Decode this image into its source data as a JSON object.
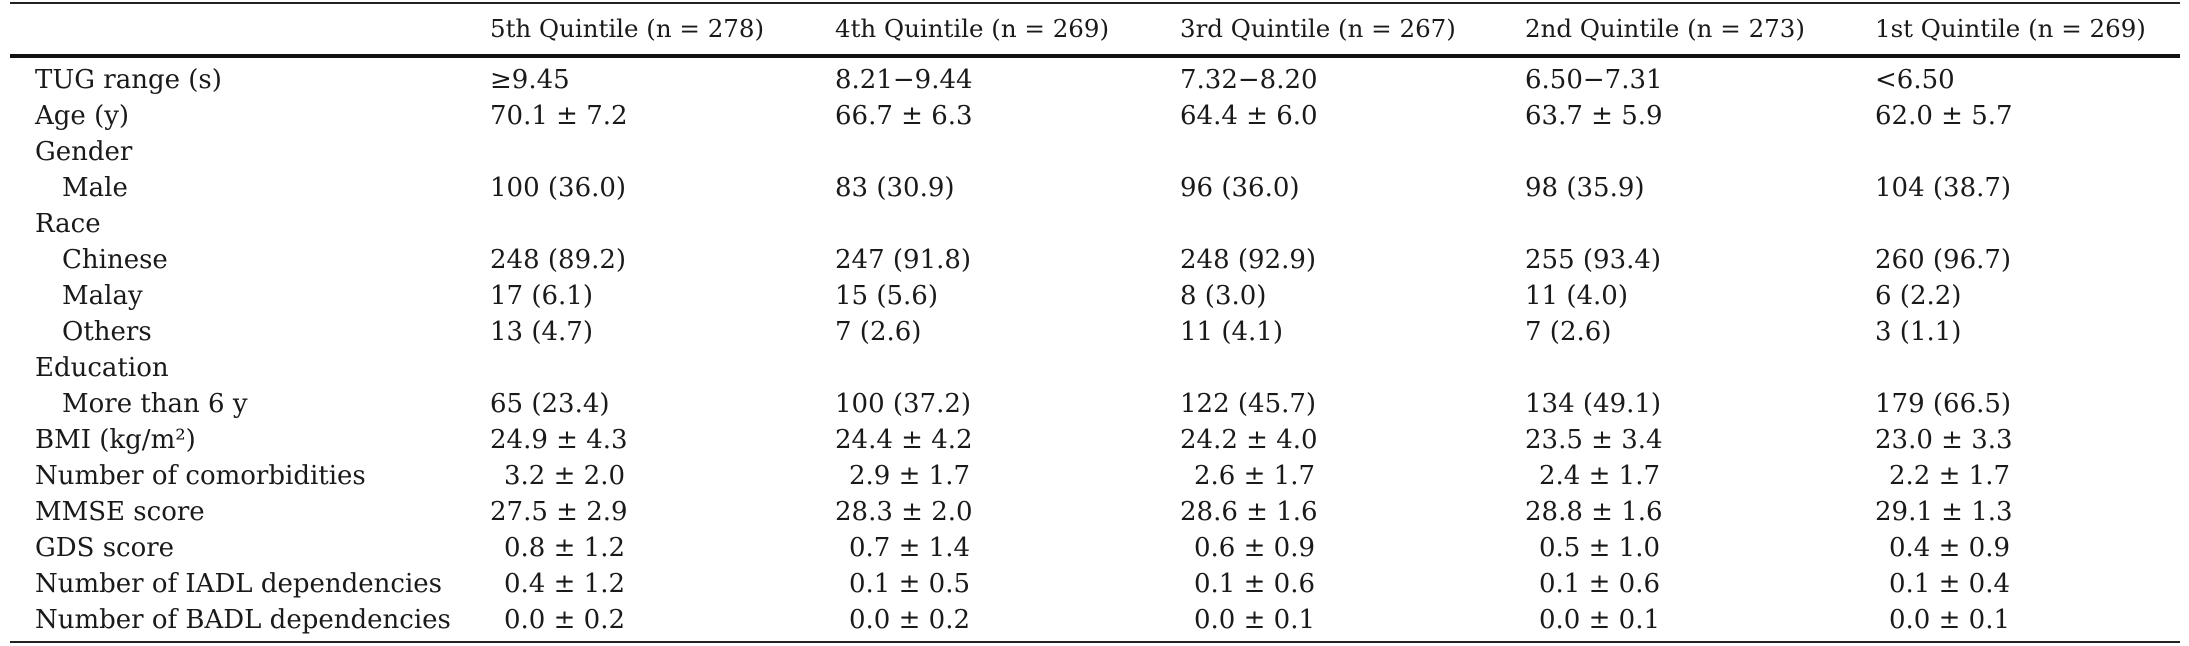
{
  "table": {
    "headers": [
      "",
      "5th Quintile (n = 278)",
      "4th Quintile (n = 269)",
      "3rd Quintile (n = 267)",
      "2nd Quintile (n = 273)",
      "1st Quintile (n = 269)"
    ],
    "rows": [
      {
        "label": "TUG range (s)",
        "sub": false,
        "pad": false,
        "values": [
          "≥9.45",
          "8.21−9.44",
          "7.32−8.20",
          "6.50−7.31",
          "<6.50"
        ]
      },
      {
        "label": "Age (y)",
        "sub": false,
        "pad": false,
        "values": [
          "70.1 ± 7.2",
          "66.7 ± 6.3",
          "64.4 ± 6.0",
          "63.7 ± 5.9",
          "62.0 ± 5.7"
        ]
      },
      {
        "label": "Gender",
        "sub": false,
        "pad": false,
        "values": [
          "",
          "",
          "",
          "",
          ""
        ]
      },
      {
        "label": "Male",
        "sub": true,
        "pad": false,
        "values": [
          "100 (36.0)",
          "83 (30.9)",
          "96 (36.0)",
          "98 (35.9)",
          "104 (38.7)"
        ]
      },
      {
        "label": "Race",
        "sub": false,
        "pad": false,
        "values": [
          "",
          "",
          "",
          "",
          ""
        ]
      },
      {
        "label": "Chinese",
        "sub": true,
        "pad": false,
        "values": [
          "248 (89.2)",
          "247 (91.8)",
          "248 (92.9)",
          "255 (93.4)",
          "260 (96.7)"
        ]
      },
      {
        "label": "Malay",
        "sub": true,
        "pad": false,
        "values": [
          "17 (6.1)",
          "15 (5.6)",
          "8 (3.0)",
          "11 (4.0)",
          "6 (2.2)"
        ]
      },
      {
        "label": "Others",
        "sub": true,
        "pad": false,
        "values": [
          "13 (4.7)",
          "7 (2.6)",
          "11 (4.1)",
          "7 (2.6)",
          "3 (1.1)"
        ]
      },
      {
        "label": "Education",
        "sub": false,
        "pad": false,
        "values": [
          "",
          "",
          "",
          "",
          ""
        ]
      },
      {
        "label": "More than 6 y",
        "sub": true,
        "pad": false,
        "values": [
          "65 (23.4)",
          "100 (37.2)",
          "122 (45.7)",
          "134 (49.1)",
          "179 (66.5)"
        ]
      },
      {
        "label": "BMI (kg/m²)",
        "sub": false,
        "pad": false,
        "values": [
          "24.9 ± 4.3",
          "24.4 ± 4.2",
          "24.2 ± 4.0",
          "23.5 ± 3.4",
          "23.0 ± 3.3"
        ]
      },
      {
        "label": "Number of comorbidities",
        "sub": false,
        "pad": true,
        "values": [
          "3.2 ± 2.0",
          "2.9 ± 1.7",
          "2.6 ± 1.7",
          "2.4 ± 1.7",
          "2.2 ± 1.7"
        ]
      },
      {
        "label": "MMSE score",
        "sub": false,
        "pad": false,
        "values": [
          "27.5 ± 2.9",
          "28.3 ± 2.0",
          "28.6 ± 1.6",
          "28.8 ± 1.6",
          "29.1 ± 1.3"
        ]
      },
      {
        "label": "GDS score",
        "sub": false,
        "pad": true,
        "values": [
          "0.8 ± 1.2",
          "0.7 ± 1.4",
          "0.6 ± 0.9",
          "0.5 ± 1.0",
          "0.4 ± 0.9"
        ]
      },
      {
        "label": "Number of IADL dependencies",
        "sub": false,
        "pad": true,
        "values": [
          "0.4 ± 1.2",
          "0.1 ± 0.5",
          "0.1 ± 0.6",
          "0.1 ± 0.6",
          "0.1 ± 0.4"
        ]
      },
      {
        "label": "Number of BADL dependencies",
        "sub": false,
        "pad": true,
        "values": [
          "0.0 ± 0.2",
          "0.0 ± 0.2",
          "0.0 ± 0.1",
          "0.0 ± 0.1",
          "0.0 ± 0.1"
        ]
      }
    ]
  }
}
